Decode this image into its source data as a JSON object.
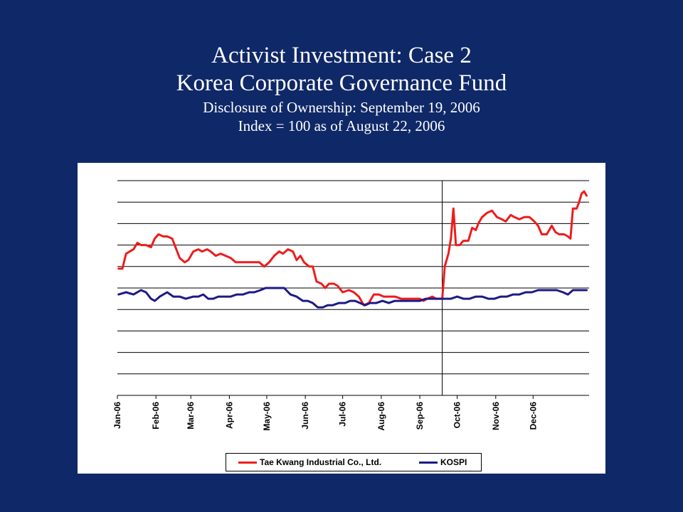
{
  "slide": {
    "title": "Activist Investment: Case 2",
    "subtitle": "Korea Corporate Governance Fund",
    "line3": "Disclosure of Ownership: September 19, 2006",
    "line4": "Index = 100 as of August 22, 2006",
    "background": "#0f2867"
  },
  "chart_data": {
    "type": "line",
    "title": "",
    "xlabel": "",
    "ylabel": "",
    "y_tick_labels_shown": false,
    "grid": "horizontal",
    "gridline_count": 10,
    "legend_position": "bottom",
    "categories": [
      "Jan-06",
      "Feb-06",
      "Mar-06",
      "Apr-06",
      "May-06",
      "Jun-06",
      "Jul-06",
      "Aug-06",
      "Sep-06",
      "Oct-06",
      "Nov-06",
      "Dec-06"
    ],
    "event_marker": {
      "date": "2006-09-19",
      "label": ""
    },
    "series": [
      {
        "name": "Tae Kwang Industrial Co., Ltd.",
        "color": "#ee1c1c",
        "points": [
          [
            "2006-01-02",
            5.9
          ],
          [
            "2006-01-05",
            5.9
          ],
          [
            "2006-01-08",
            6.6
          ],
          [
            "2006-01-14",
            6.8
          ],
          [
            "2006-01-17",
            7.1
          ],
          [
            "2006-01-20",
            7.0
          ],
          [
            "2006-01-24",
            7.0
          ],
          [
            "2006-01-28",
            6.9
          ],
          [
            "2006-01-31",
            7.3
          ],
          [
            "2006-02-03",
            7.5
          ],
          [
            "2006-02-07",
            7.4
          ],
          [
            "2006-02-10",
            7.4
          ],
          [
            "2006-02-14",
            7.3
          ],
          [
            "2006-02-20",
            6.4
          ],
          [
            "2006-02-24",
            6.2
          ],
          [
            "2006-02-27",
            6.3
          ],
          [
            "2006-03-03",
            6.7
          ],
          [
            "2006-03-07",
            6.8
          ],
          [
            "2006-03-10",
            6.7
          ],
          [
            "2006-03-14",
            6.8
          ],
          [
            "2006-03-17",
            6.7
          ],
          [
            "2006-03-21",
            6.5
          ],
          [
            "2006-03-25",
            6.6
          ],
          [
            "2006-03-29",
            6.5
          ],
          [
            "2006-04-02",
            6.4
          ],
          [
            "2006-04-06",
            6.2
          ],
          [
            "2006-04-10",
            6.2
          ],
          [
            "2006-04-15",
            6.2
          ],
          [
            "2006-04-20",
            6.2
          ],
          [
            "2006-04-25",
            6.2
          ],
          [
            "2006-04-29",
            6.0
          ],
          [
            "2006-05-03",
            6.2
          ],
          [
            "2006-05-07",
            6.5
          ],
          [
            "2006-05-11",
            6.7
          ],
          [
            "2006-05-14",
            6.6
          ],
          [
            "2006-05-18",
            6.8
          ],
          [
            "2006-05-22",
            6.7
          ],
          [
            "2006-05-25",
            6.3
          ],
          [
            "2006-05-28",
            6.5
          ],
          [
            "2006-05-31",
            6.2
          ],
          [
            "2006-06-04",
            6.0
          ],
          [
            "2006-06-07",
            6.0
          ],
          [
            "2006-06-10",
            5.3
          ],
          [
            "2006-06-14",
            5.2
          ],
          [
            "2006-06-17",
            5.0
          ],
          [
            "2006-06-20",
            5.2
          ],
          [
            "2006-06-24",
            5.2
          ],
          [
            "2006-06-27",
            5.1
          ],
          [
            "2006-07-01",
            4.8
          ],
          [
            "2006-07-06",
            4.9
          ],
          [
            "2006-07-10",
            4.8
          ],
          [
            "2006-07-14",
            4.6
          ],
          [
            "2006-07-18",
            4.2
          ],
          [
            "2006-07-22",
            4.3
          ],
          [
            "2006-07-26",
            4.7
          ],
          [
            "2006-07-30",
            4.7
          ],
          [
            "2006-08-03",
            4.6
          ],
          [
            "2006-08-07",
            4.6
          ],
          [
            "2006-08-12",
            4.6
          ],
          [
            "2006-08-17",
            4.5
          ],
          [
            "2006-08-22",
            4.5
          ],
          [
            "2006-08-29",
            4.5
          ],
          [
            "2006-09-01",
            4.5
          ],
          [
            "2006-09-04",
            4.4
          ],
          [
            "2006-09-07",
            4.5
          ],
          [
            "2006-09-11",
            4.6
          ],
          [
            "2006-09-14",
            4.5
          ],
          [
            "2006-09-17",
            4.5
          ],
          [
            "2006-09-19",
            4.5
          ],
          [
            "2006-09-21",
            6.0
          ],
          [
            "2006-09-24",
            6.6
          ],
          [
            "2006-09-26",
            7.3
          ],
          [
            "2006-09-28",
            8.7
          ],
          [
            "2006-09-30",
            7.0
          ],
          [
            "2006-10-03",
            7.0
          ],
          [
            "2006-10-06",
            7.2
          ],
          [
            "2006-10-10",
            7.2
          ],
          [
            "2006-10-13",
            7.8
          ],
          [
            "2006-10-16",
            7.7
          ],
          [
            "2006-10-18",
            8.0
          ],
          [
            "2006-10-21",
            8.3
          ],
          [
            "2006-10-25",
            8.5
          ],
          [
            "2006-10-29",
            8.6
          ],
          [
            "2006-11-02",
            8.3
          ],
          [
            "2006-11-06",
            8.2
          ],
          [
            "2006-11-09",
            8.1
          ],
          [
            "2006-11-13",
            8.4
          ],
          [
            "2006-11-16",
            8.3
          ],
          [
            "2006-11-20",
            8.2
          ],
          [
            "2006-11-24",
            8.3
          ],
          [
            "2006-11-28",
            8.3
          ],
          [
            "2006-12-02",
            8.1
          ],
          [
            "2006-12-05",
            7.9
          ],
          [
            "2006-12-08",
            7.5
          ],
          [
            "2006-12-12",
            7.5
          ],
          [
            "2006-12-16",
            7.9
          ],
          [
            "2006-12-19",
            7.6
          ],
          [
            "2006-12-22",
            7.5
          ],
          [
            "2006-12-26",
            7.5
          ],
          [
            "2006-12-29",
            7.4
          ],
          [
            "2006-12-31",
            7.3
          ],
          [
            "2007-01-02",
            8.7
          ],
          [
            "2007-01-05",
            8.7
          ],
          [
            "2007-01-07",
            9.0
          ],
          [
            "2007-01-09",
            9.4
          ],
          [
            "2007-01-11",
            9.5
          ],
          [
            "2007-01-13",
            9.3
          ]
        ]
      },
      {
        "name": "KOSPI",
        "color": "#1c1a86",
        "points": [
          [
            "2006-01-02",
            4.7
          ],
          [
            "2006-01-08",
            4.8
          ],
          [
            "2006-01-14",
            4.7
          ],
          [
            "2006-01-20",
            4.9
          ],
          [
            "2006-01-24",
            4.8
          ],
          [
            "2006-01-28",
            4.5
          ],
          [
            "2006-01-31",
            4.4
          ],
          [
            "2006-02-04",
            4.6
          ],
          [
            "2006-02-10",
            4.8
          ],
          [
            "2006-02-15",
            4.6
          ],
          [
            "2006-02-20",
            4.6
          ],
          [
            "2006-02-25",
            4.5
          ],
          [
            "2006-03-03",
            4.6
          ],
          [
            "2006-03-07",
            4.6
          ],
          [
            "2006-03-11",
            4.7
          ],
          [
            "2006-03-15",
            4.5
          ],
          [
            "2006-03-19",
            4.5
          ],
          [
            "2006-03-23",
            4.6
          ],
          [
            "2006-03-28",
            4.6
          ],
          [
            "2006-04-02",
            4.6
          ],
          [
            "2006-04-07",
            4.7
          ],
          [
            "2006-04-12",
            4.7
          ],
          [
            "2006-04-17",
            4.8
          ],
          [
            "2006-04-21",
            4.8
          ],
          [
            "2006-04-26",
            4.9
          ],
          [
            "2006-04-30",
            5.0
          ],
          [
            "2006-05-05",
            5.0
          ],
          [
            "2006-05-10",
            5.0
          ],
          [
            "2006-05-15",
            5.0
          ],
          [
            "2006-05-20",
            4.7
          ],
          [
            "2006-05-25",
            4.6
          ],
          [
            "2006-05-30",
            4.4
          ],
          [
            "2006-06-03",
            4.4
          ],
          [
            "2006-06-07",
            4.3
          ],
          [
            "2006-06-11",
            4.1
          ],
          [
            "2006-06-15",
            4.1
          ],
          [
            "2006-06-19",
            4.2
          ],
          [
            "2006-06-23",
            4.2
          ],
          [
            "2006-06-28",
            4.3
          ],
          [
            "2006-07-03",
            4.3
          ],
          [
            "2006-07-07",
            4.4
          ],
          [
            "2006-07-11",
            4.4
          ],
          [
            "2006-07-15",
            4.3
          ],
          [
            "2006-07-19",
            4.2
          ],
          [
            "2006-07-23",
            4.3
          ],
          [
            "2006-07-28",
            4.3
          ],
          [
            "2006-08-02",
            4.4
          ],
          [
            "2006-08-07",
            4.3
          ],
          [
            "2006-08-12",
            4.4
          ],
          [
            "2006-08-17",
            4.4
          ],
          [
            "2006-08-22",
            4.4
          ],
          [
            "2006-08-27",
            4.4
          ],
          [
            "2006-09-01",
            4.4
          ],
          [
            "2006-09-06",
            4.5
          ],
          [
            "2006-09-11",
            4.5
          ],
          [
            "2006-09-16",
            4.5
          ],
          [
            "2006-09-21",
            4.5
          ],
          [
            "2006-09-26",
            4.5
          ],
          [
            "2006-10-01",
            4.6
          ],
          [
            "2006-10-06",
            4.5
          ],
          [
            "2006-10-11",
            4.5
          ],
          [
            "2006-10-16",
            4.6
          ],
          [
            "2006-10-21",
            4.6
          ],
          [
            "2006-10-26",
            4.5
          ],
          [
            "2006-10-31",
            4.5
          ],
          [
            "2006-11-05",
            4.6
          ],
          [
            "2006-11-10",
            4.6
          ],
          [
            "2006-11-15",
            4.7
          ],
          [
            "2006-11-20",
            4.7
          ],
          [
            "2006-11-25",
            4.8
          ],
          [
            "2006-11-30",
            4.8
          ],
          [
            "2006-12-05",
            4.9
          ],
          [
            "2006-12-10",
            4.9
          ],
          [
            "2006-12-15",
            4.9
          ],
          [
            "2006-12-20",
            4.9
          ],
          [
            "2006-12-25",
            4.8
          ],
          [
            "2006-12-29",
            4.7
          ],
          [
            "2007-01-02",
            4.9
          ],
          [
            "2007-01-07",
            4.9
          ],
          [
            "2007-01-13",
            4.9
          ]
        ]
      }
    ]
  }
}
